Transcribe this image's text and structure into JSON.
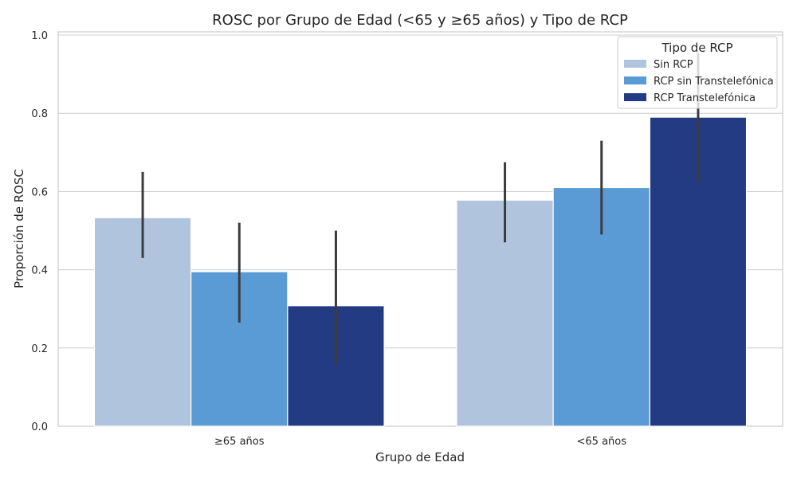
{
  "chart_data": {
    "type": "bar",
    "title": "ROSC por Grupo de Edad (<65 y ≥65 años) y Tipo de RCP",
    "xlabel": "Grupo de Edad",
    "ylabel": "Proporción de ROSC",
    "categories": [
      "≥65 años",
      "<65 años"
    ],
    "ylim": [
      0,
      1.0
    ],
    "yticks": [
      "0.0",
      "0.2",
      "0.4",
      "0.6",
      "0.8",
      "1.0"
    ],
    "grid": "horizontal",
    "legend": {
      "title": "Tipo de RCP",
      "placement": "top-right"
    },
    "series": [
      {
        "name": "Sin RCP",
        "color": "#b0c4de",
        "values": [
          0.533,
          0.578
        ],
        "ci": [
          [
            0.43,
            0.65
          ],
          [
            0.47,
            0.675
          ]
        ]
      },
      {
        "name": "RCP sin Transtelefónica",
        "color": "#5b9bd5",
        "values": [
          0.395,
          0.61
        ],
        "ci": [
          [
            0.265,
            0.52
          ],
          [
            0.49,
            0.73
          ]
        ]
      },
      {
        "name": "RCP Transtelefónica",
        "color": "#233b82",
        "values": [
          0.308,
          0.79
        ],
        "ci": [
          [
            0.155,
            0.5
          ],
          [
            0.625,
            0.955
          ]
        ]
      }
    ]
  }
}
